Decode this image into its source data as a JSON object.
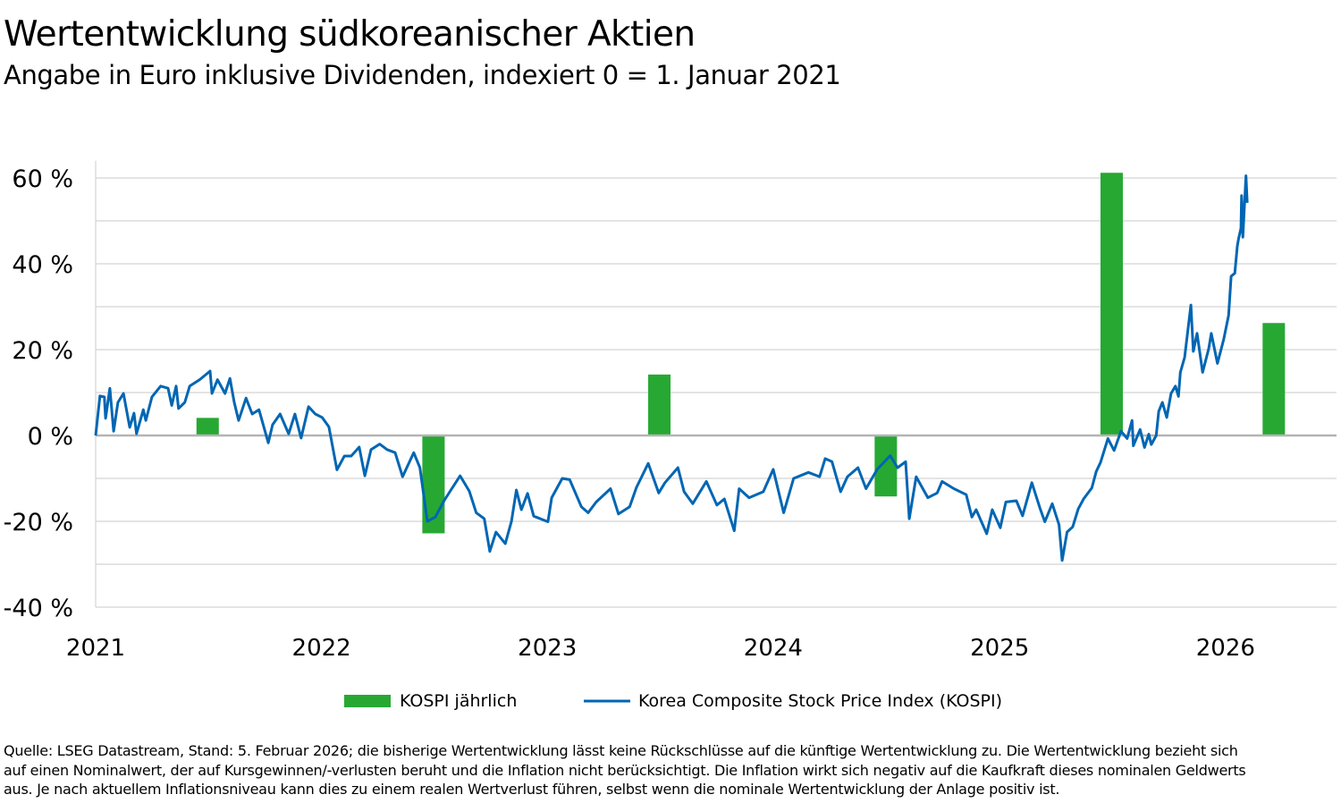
{
  "title": "Wertentwicklung südkoreanischer Aktien",
  "subtitle": "Angabe in Euro inklusive Dividenden, indexiert 0 = 1. Januar 2021",
  "footnote": [
    "Quelle: LSEG Datastream, Stand: 5. Februar 2026; die bisherige Wertentwicklung lässt keine Rückschlüsse auf die künftige Wertentwicklung zu. Die Wertentwicklung bezieht sich",
    "auf einen Nominalwert, der auf Kursgewinnen/-verlusten beruht und die Inflation nicht berücksichtigt. Die Inflation wirkt sich negativ auf die Kaufkraft dieses nominalen Geldwerts",
    "aus. Je nach aktuellem Inflationsniveau kann dies zu einem realen Wertverlust führen, selbst wenn die nominale Wertentwicklung der Anlage positiv ist."
  ],
  "chart_data": {
    "type": "bar+line",
    "title": "Wertentwicklung südkoreanischer Aktien",
    "subtitle": "Angabe in Euro inklusive Dividenden, indexiert 0 = 1. Januar 2021",
    "xlim": [
      "2021-01-01",
      "2026-07-01"
    ],
    "ylim": [
      -40,
      64
    ],
    "grid": true,
    "legend_position": "bottom",
    "colors": {
      "bars": "#27a833",
      "line": "#0066b3",
      "grid": "#d4d4d4",
      "zero_line": "#b4b4b4"
    },
    "y_ticks": [
      {
        "value": 60,
        "label": "60 %"
      },
      {
        "value": 40,
        "label": "40 %"
      },
      {
        "value": 20,
        "label": "20 %"
      },
      {
        "value": 0,
        "label": "0 %"
      },
      {
        "value": -20,
        "label": "-20 %"
      },
      {
        "value": -40,
        "label": "-40 %"
      }
    ],
    "y_gridlines": [
      60,
      50,
      40,
      30,
      20,
      10,
      -10,
      -20,
      -30,
      -40
    ],
    "x_ticks": [
      {
        "date": "2021-01-01",
        "label": "2021"
      },
      {
        "date": "2022-01-01",
        "label": "2022"
      },
      {
        "date": "2023-01-01",
        "label": "2023"
      },
      {
        "date": "2024-01-01",
        "label": "2024"
      },
      {
        "date": "2025-01-01",
        "label": "2025"
      },
      {
        "date": "2026-01-01",
        "label": "2026"
      }
    ],
    "series": [
      {
        "name": "KOSPI jährlich",
        "type": "bar",
        "points": [
          {
            "date": "2021-07-01",
            "value": 4.1
          },
          {
            "date": "2022-07-01",
            "value": -22.8
          },
          {
            "date": "2023-07-01",
            "value": 14.2
          },
          {
            "date": "2024-07-01",
            "value": -14.2
          },
          {
            "date": "2025-07-01",
            "value": 61.2
          },
          {
            "date": "2026-03-20",
            "value": 26.2
          }
        ]
      },
      {
        "name": "Korea Composite Stock Price Index (KOSPI)",
        "type": "line",
        "points": [
          [
            "2021-01-01",
            0
          ],
          [
            "2021-01-08",
            9.2
          ],
          [
            "2021-01-15",
            9
          ],
          [
            "2021-01-17",
            4
          ],
          [
            "2021-01-24",
            11
          ],
          [
            "2021-01-30",
            1
          ],
          [
            "2021-02-06",
            7.7
          ],
          [
            "2021-02-15",
            9.8
          ],
          [
            "2021-02-25",
            1.9
          ],
          [
            "2021-03-04",
            5.2
          ],
          [
            "2021-03-08",
            0.4
          ],
          [
            "2021-03-19",
            6
          ],
          [
            "2021-03-23",
            3.5
          ],
          [
            "2021-04-02",
            9
          ],
          [
            "2021-04-16",
            11.5
          ],
          [
            "2021-04-28",
            11
          ],
          [
            "2021-05-04",
            7
          ],
          [
            "2021-05-11",
            11.5
          ],
          [
            "2021-05-15",
            6.3
          ],
          [
            "2021-05-25",
            7.7
          ],
          [
            "2021-06-02",
            11.5
          ],
          [
            "2021-06-18",
            13
          ],
          [
            "2021-07-05",
            15
          ],
          [
            "2021-07-08",
            9.8
          ],
          [
            "2021-07-17",
            13
          ],
          [
            "2021-07-29",
            9.8
          ],
          [
            "2021-08-06",
            13.3
          ],
          [
            "2021-08-13",
            7.7
          ],
          [
            "2021-08-20",
            3.5
          ],
          [
            "2021-09-01",
            8.7
          ],
          [
            "2021-09-11",
            5
          ],
          [
            "2021-09-22",
            6
          ],
          [
            "2021-10-07",
            -1.7
          ],
          [
            "2021-10-14",
            2.5
          ],
          [
            "2021-10-26",
            5
          ],
          [
            "2021-11-09",
            0.4
          ],
          [
            "2021-11-19",
            5
          ],
          [
            "2021-11-29",
            -0.6
          ],
          [
            "2021-12-11",
            6.7
          ],
          [
            "2021-12-22",
            5
          ],
          [
            "2022-01-02",
            4.2
          ],
          [
            "2022-01-13",
            2
          ],
          [
            "2022-01-26",
            -8
          ],
          [
            "2022-02-07",
            -4.8
          ],
          [
            "2022-02-18",
            -4.8
          ],
          [
            "2022-03-03",
            -2.7
          ],
          [
            "2022-03-12",
            -9.4
          ],
          [
            "2022-03-22",
            -3.3
          ],
          [
            "2022-04-05",
            -2
          ],
          [
            "2022-04-17",
            -3.3
          ],
          [
            "2022-04-30",
            -4
          ],
          [
            "2022-05-12",
            -9.6
          ],
          [
            "2022-05-30",
            -4
          ],
          [
            "2022-06-09",
            -7.5
          ],
          [
            "2022-06-21",
            -20
          ],
          [
            "2022-07-04",
            -19
          ],
          [
            "2022-07-18",
            -15.2
          ],
          [
            "2022-07-30",
            -12.5
          ],
          [
            "2022-08-13",
            -9.4
          ],
          [
            "2022-08-28",
            -13
          ],
          [
            "2022-09-08",
            -18
          ],
          [
            "2022-09-21",
            -19.4
          ],
          [
            "2022-09-30",
            -27
          ],
          [
            "2022-10-10",
            -22.5
          ],
          [
            "2022-10-25",
            -25.2
          ],
          [
            "2022-11-04",
            -20
          ],
          [
            "2022-11-12",
            -12.7
          ],
          [
            "2022-11-20",
            -17.3
          ],
          [
            "2022-11-30",
            -13.5
          ],
          [
            "2022-12-10",
            -18.8
          ],
          [
            "2023-01-02",
            -20.1
          ],
          [
            "2023-01-08",
            -14.5
          ],
          [
            "2023-01-25",
            -10
          ],
          [
            "2023-02-06",
            -10.3
          ],
          [
            "2023-02-25",
            -16.6
          ],
          [
            "2023-03-08",
            -18
          ],
          [
            "2023-03-21",
            -15.5
          ],
          [
            "2023-04-13",
            -12.4
          ],
          [
            "2023-04-26",
            -18.3
          ],
          [
            "2023-05-14",
            -16.6
          ],
          [
            "2023-05-25",
            -12.1
          ],
          [
            "2023-06-13",
            -6.5
          ],
          [
            "2023-06-30",
            -13.4
          ],
          [
            "2023-07-10",
            -11
          ],
          [
            "2023-07-31",
            -7.5
          ],
          [
            "2023-08-10",
            -13.1
          ],
          [
            "2023-08-24",
            -15.9
          ],
          [
            "2023-09-15",
            -10.7
          ],
          [
            "2023-10-02",
            -16.2
          ],
          [
            "2023-10-14",
            -14.8
          ],
          [
            "2023-10-30",
            -22.2
          ],
          [
            "2023-11-07",
            -12.4
          ],
          [
            "2023-11-23",
            -14.5
          ],
          [
            "2023-12-16",
            -13.1
          ],
          [
            "2024-01-01",
            -7.9
          ],
          [
            "2024-01-18",
            -18
          ],
          [
            "2024-02-03",
            -10
          ],
          [
            "2024-02-27",
            -8.6
          ],
          [
            "2024-03-16",
            -9.6
          ],
          [
            "2024-03-25",
            -5.4
          ],
          [
            "2024-04-05",
            -6.1
          ],
          [
            "2024-04-19",
            -13.1
          ],
          [
            "2024-04-30",
            -9.6
          ],
          [
            "2024-05-17",
            -7.5
          ],
          [
            "2024-05-30",
            -12.4
          ],
          [
            "2024-06-17",
            -7.9
          ],
          [
            "2024-07-08",
            -4.7
          ],
          [
            "2024-07-20",
            -7.5
          ],
          [
            "2024-08-02",
            -6.1
          ],
          [
            "2024-08-08",
            -19.4
          ],
          [
            "2024-08-19",
            -9.6
          ],
          [
            "2024-09-07",
            -14.5
          ],
          [
            "2024-09-22",
            -13.4
          ],
          [
            "2024-09-30",
            -10.7
          ],
          [
            "2024-10-19",
            -12.4
          ],
          [
            "2024-11-08",
            -13.8
          ],
          [
            "2024-11-17",
            -19
          ],
          [
            "2024-11-24",
            -17.3
          ],
          [
            "2024-12-11",
            -22.9
          ],
          [
            "2024-12-20",
            -17.3
          ],
          [
            "2025-01-02",
            -21.5
          ],
          [
            "2025-01-11",
            -15.5
          ],
          [
            "2025-01-28",
            -15.2
          ],
          [
            "2025-02-07",
            -18.7
          ],
          [
            "2025-02-22",
            -11
          ],
          [
            "2025-03-07",
            -16.9
          ],
          [
            "2025-03-15",
            -20.1
          ],
          [
            "2025-03-27",
            -15.9
          ],
          [
            "2025-04-07",
            -20.8
          ],
          [
            "2025-04-12",
            -29.1
          ],
          [
            "2025-04-20",
            -22.5
          ],
          [
            "2025-04-29",
            -21.3
          ],
          [
            "2025-05-08",
            -17.1
          ],
          [
            "2025-05-17",
            -14.7
          ],
          [
            "2025-05-30",
            -12.2
          ],
          [
            "2025-06-06",
            -8.4
          ],
          [
            "2025-06-13",
            -6.3
          ],
          [
            "2025-06-25",
            -0.7
          ],
          [
            "2025-07-05",
            -3.5
          ],
          [
            "2025-07-16",
            1
          ],
          [
            "2025-07-26",
            -0.7
          ],
          [
            "2025-08-03",
            3.5
          ],
          [
            "2025-08-05",
            -2.4
          ],
          [
            "2025-08-16",
            1.4
          ],
          [
            "2025-08-23",
            -2.8
          ],
          [
            "2025-08-30",
            0.3
          ],
          [
            "2025-09-03",
            -2.1
          ],
          [
            "2025-09-11",
            0
          ],
          [
            "2025-09-15",
            5.6
          ],
          [
            "2025-09-21",
            7.7
          ],
          [
            "2025-09-28",
            4.2
          ],
          [
            "2025-10-05",
            9.8
          ],
          [
            "2025-10-12",
            11.5
          ],
          [
            "2025-10-17",
            9.1
          ],
          [
            "2025-10-20",
            14.7
          ],
          [
            "2025-10-27",
            18.2
          ],
          [
            "2025-11-06",
            30.4
          ],
          [
            "2025-11-10",
            19.6
          ],
          [
            "2025-11-16",
            23.8
          ],
          [
            "2025-11-25",
            14.7
          ],
          [
            "2025-12-05",
            20.3
          ],
          [
            "2025-12-09",
            23.8
          ],
          [
            "2025-12-19",
            16.8
          ],
          [
            "2025-12-29",
            22.4
          ],
          [
            "2026-01-06",
            28
          ],
          [
            "2026-01-10",
            37.1
          ],
          [
            "2026-01-16",
            37.8
          ],
          [
            "2026-01-20",
            44.1
          ],
          [
            "2026-01-22",
            45.8
          ],
          [
            "2026-01-26",
            48.3
          ],
          [
            "2026-01-27",
            55.9
          ],
          [
            "2026-01-29",
            46.2
          ],
          [
            "2026-02-03",
            60.5
          ],
          [
            "2026-02-05",
            54.2
          ]
        ]
      }
    ],
    "legend": [
      {
        "label": "KOSPI jährlich",
        "marker": "bar"
      },
      {
        "label": "Korea Composite Stock Price Index (KOSPI)",
        "marker": "line"
      }
    ]
  }
}
